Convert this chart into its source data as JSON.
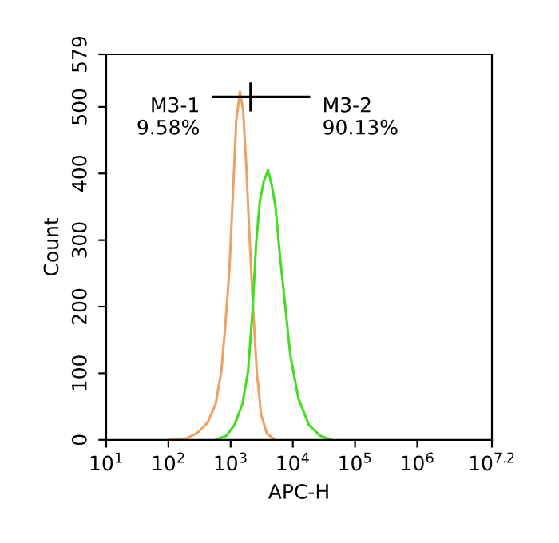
{
  "chart_data": {
    "type": "line",
    "xlabel": "APC-H",
    "ylabel": "Count",
    "log": "x",
    "xlim": [
      10,
      15848932
    ],
    "xticks": [
      {
        "value": 10,
        "label": "10$^{1}$"
      },
      {
        "value": 100,
        "label": "10$^{2}$"
      },
      {
        "value": 1000,
        "label": "10$^{3}$"
      },
      {
        "value": 10000,
        "label": "10$^{4}$"
      },
      {
        "value": 100000,
        "label": "10$^{5}$"
      },
      {
        "value": 1000000,
        "label": "10$^{6}$"
      },
      {
        "value": 15848932,
        "label": "10$^{7.2}$"
      }
    ],
    "ylim": [
      0,
      579
    ],
    "yticks": [
      0,
      100,
      200,
      300,
      400,
      500,
      579
    ],
    "grid": false,
    "marker": "none",
    "line_style": "solid",
    "series": [
      {
        "color": "#f0a060",
        "x": [
          107,
          195,
          288,
          427,
          575,
          708,
          813,
          955,
          1096,
          1230,
          1413,
          1585,
          1778,
          1995,
          2291,
          2630,
          3090,
          3802,
          5129
        ],
        "values": [
          0,
          2,
          10,
          26,
          54,
          103,
          167,
          255,
          375,
          479,
          523,
          495,
          415,
          311,
          199,
          103,
          38,
          10,
          0
        ]
      },
      {
        "color": "#44dd22",
        "x": [
          575,
          851,
          1148,
          1549,
          1905,
          2239,
          2570,
          2951,
          3388,
          3981,
          4571,
          5248,
          6166,
          7586,
          9120,
          12303,
          18197,
          27542,
          40738
        ],
        "values": [
          0,
          6,
          22,
          54,
          103,
          191,
          295,
          359,
          387,
          405,
          383,
          351,
          279,
          199,
          127,
          62,
          22,
          6,
          0
        ]
      },
      {
        "color": "#000000",
        "x": [
          525,
          18197
        ],
        "values": [
          515,
          515
        ]
      },
      {
        "color": "#000000",
        "x": [
          2089,
          2089
        ],
        "values": [
          495,
          535
        ]
      }
    ],
    "annotations": [
      {
        "text": "M3-1\n9.58%",
        "x": 525,
        "y": 515
      },
      {
        "text": "M3-2\n90.13%",
        "x": 18197,
        "y": 515
      }
    ]
  }
}
